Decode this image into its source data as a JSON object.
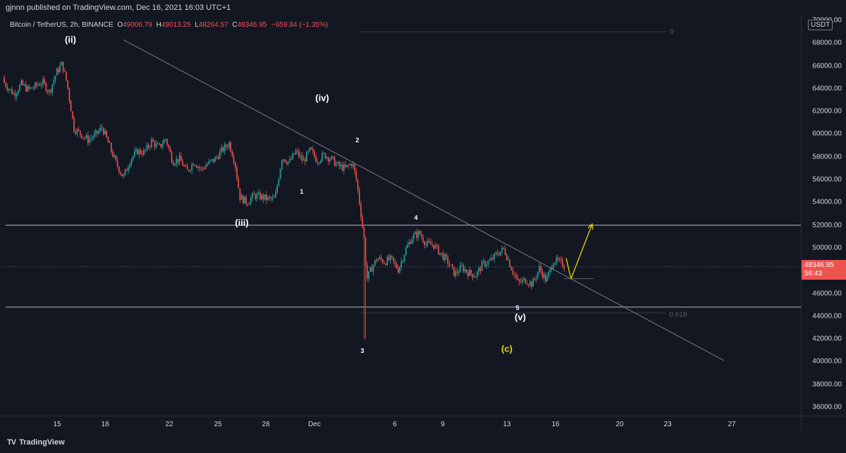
{
  "header": {
    "published_text": "gjnnn published on TradingView.com, Dec 16, 2021 16:03 UTC+1"
  },
  "symbol": {
    "name": "Bitcoin / TetherUS, 2h, BINANCE",
    "open_label": "O",
    "open": "49006.79",
    "high_label": "H",
    "high": "49013.25",
    "low_label": "L",
    "low": "48264.57",
    "close_label": "C",
    "close": "48346.95",
    "change": "−659.84 (−1.35%)"
  },
  "yaxis": {
    "unit": "USDT",
    "ticks": [
      "70000.00",
      "68000.00",
      "66000.00",
      "64000.00",
      "62000.00",
      "60000.00",
      "58000.00",
      "56000.00",
      "54000.00",
      "52000.00",
      "50000.00",
      "48000.00",
      "46000.00",
      "44000.00",
      "42000.00",
      "40000.00",
      "38000.00",
      "36000.00"
    ],
    "current_price": "48346.95",
    "countdown": "56:43"
  },
  "xaxis": {
    "ticks": [
      "15",
      "18",
      "22",
      "25",
      "28",
      "Dec",
      "6",
      "9",
      "13",
      "16",
      "20",
      "23",
      "27"
    ]
  },
  "annotations": {
    "wave_ii": "(ii)",
    "wave_iii": "(iii)",
    "wave_iv": "(iv)",
    "wave_v": "(v)",
    "wave_c": "(c)",
    "sub_1": "1",
    "sub_2": "2",
    "sub_3": "3",
    "sub_4": "4",
    "sub_5": "5",
    "fib_top": "0",
    "fib_bottom": "0.618"
  },
  "footer": {
    "brand": "TradingView",
    "logo": "TV"
  },
  "colors": {
    "background": "#131722",
    "up_candle": "#26a69a",
    "down_candle": "#ef5350",
    "projection": "#e6d600"
  },
  "chart_data": {
    "type": "candlestick",
    "title": "Bitcoin / TetherUS, 2h, BINANCE",
    "xlabel": "",
    "ylabel": "",
    "ylim": [
      35000,
      70500
    ],
    "grid": false,
    "horizontal_levels": [
      52000,
      44800
    ],
    "close_series": [
      [
        0,
        65000
      ],
      [
        10,
        64200
      ],
      [
        20,
        63500
      ],
      [
        30,
        64400
      ],
      [
        40,
        63900
      ],
      [
        50,
        64200
      ],
      [
        60,
        64600
      ],
      [
        70,
        63700
      ],
      [
        80,
        65400
      ],
      [
        88,
        66200
      ],
      [
        95,
        64500
      ],
      [
        105,
        60500
      ],
      [
        115,
        60000
      ],
      [
        125,
        59500
      ],
      [
        135,
        59900
      ],
      [
        145,
        60600
      ],
      [
        155,
        59000
      ],
      [
        165,
        57400
      ],
      [
        175,
        56200
      ],
      [
        185,
        57800
      ],
      [
        195,
        58500
      ],
      [
        205,
        58400
      ],
      [
        215,
        59400
      ],
      [
        225,
        58800
      ],
      [
        235,
        59600
      ],
      [
        245,
        57600
      ],
      [
        255,
        57800
      ],
      [
        265,
        56700
      ],
      [
        275,
        57600
      ],
      [
        285,
        56900
      ],
      [
        295,
        57400
      ],
      [
        305,
        57800
      ],
      [
        315,
        58600
      ],
      [
        325,
        59200
      ],
      [
        333,
        57600
      ],
      [
        340,
        54500
      ],
      [
        350,
        54000
      ],
      [
        360,
        54600
      ],
      [
        370,
        54500
      ],
      [
        380,
        54300
      ],
      [
        390,
        54300
      ],
      [
        400,
        58000
      ],
      [
        410,
        57500
      ],
      [
        420,
        58500
      ],
      [
        430,
        57600
      ],
      [
        440,
        58600
      ],
      [
        450,
        57700
      ],
      [
        460,
        58200
      ],
      [
        470,
        57800
      ],
      [
        480,
        57200
      ],
      [
        490,
        57000
      ],
      [
        500,
        57500
      ],
      [
        506,
        55800
      ],
      [
        512,
        53000
      ],
      [
        517,
        50500
      ],
      [
        520,
        47200
      ],
      [
        527,
        48200
      ],
      [
        535,
        49100
      ],
      [
        545,
        48800
      ],
      [
        555,
        49000
      ],
      [
        565,
        48100
      ],
      [
        575,
        49800
      ],
      [
        585,
        51000
      ],
      [
        595,
        51300
      ],
      [
        605,
        50300
      ],
      [
        615,
        50300
      ],
      [
        625,
        49500
      ],
      [
        635,
        48800
      ],
      [
        645,
        47700
      ],
      [
        655,
        48300
      ],
      [
        665,
        47800
      ],
      [
        675,
        47600
      ],
      [
        685,
        48600
      ],
      [
        695,
        48800
      ],
      [
        705,
        49500
      ],
      [
        715,
        49900
      ],
      [
        725,
        48300
      ],
      [
        735,
        46900
      ],
      [
        745,
        47200
      ],
      [
        755,
        46800
      ],
      [
        765,
        48200
      ],
      [
        775,
        47100
      ],
      [
        785,
        48900
      ],
      [
        795,
        48700
      ],
      [
        802,
        48347
      ]
    ],
    "trendline": [
      [
        175,
        68300
      ],
      [
        1027,
        40100
      ]
    ],
    "projection": [
      [
        803,
        49100
      ],
      [
        810,
        47300
      ],
      [
        840,
        52100
      ]
    ]
  }
}
